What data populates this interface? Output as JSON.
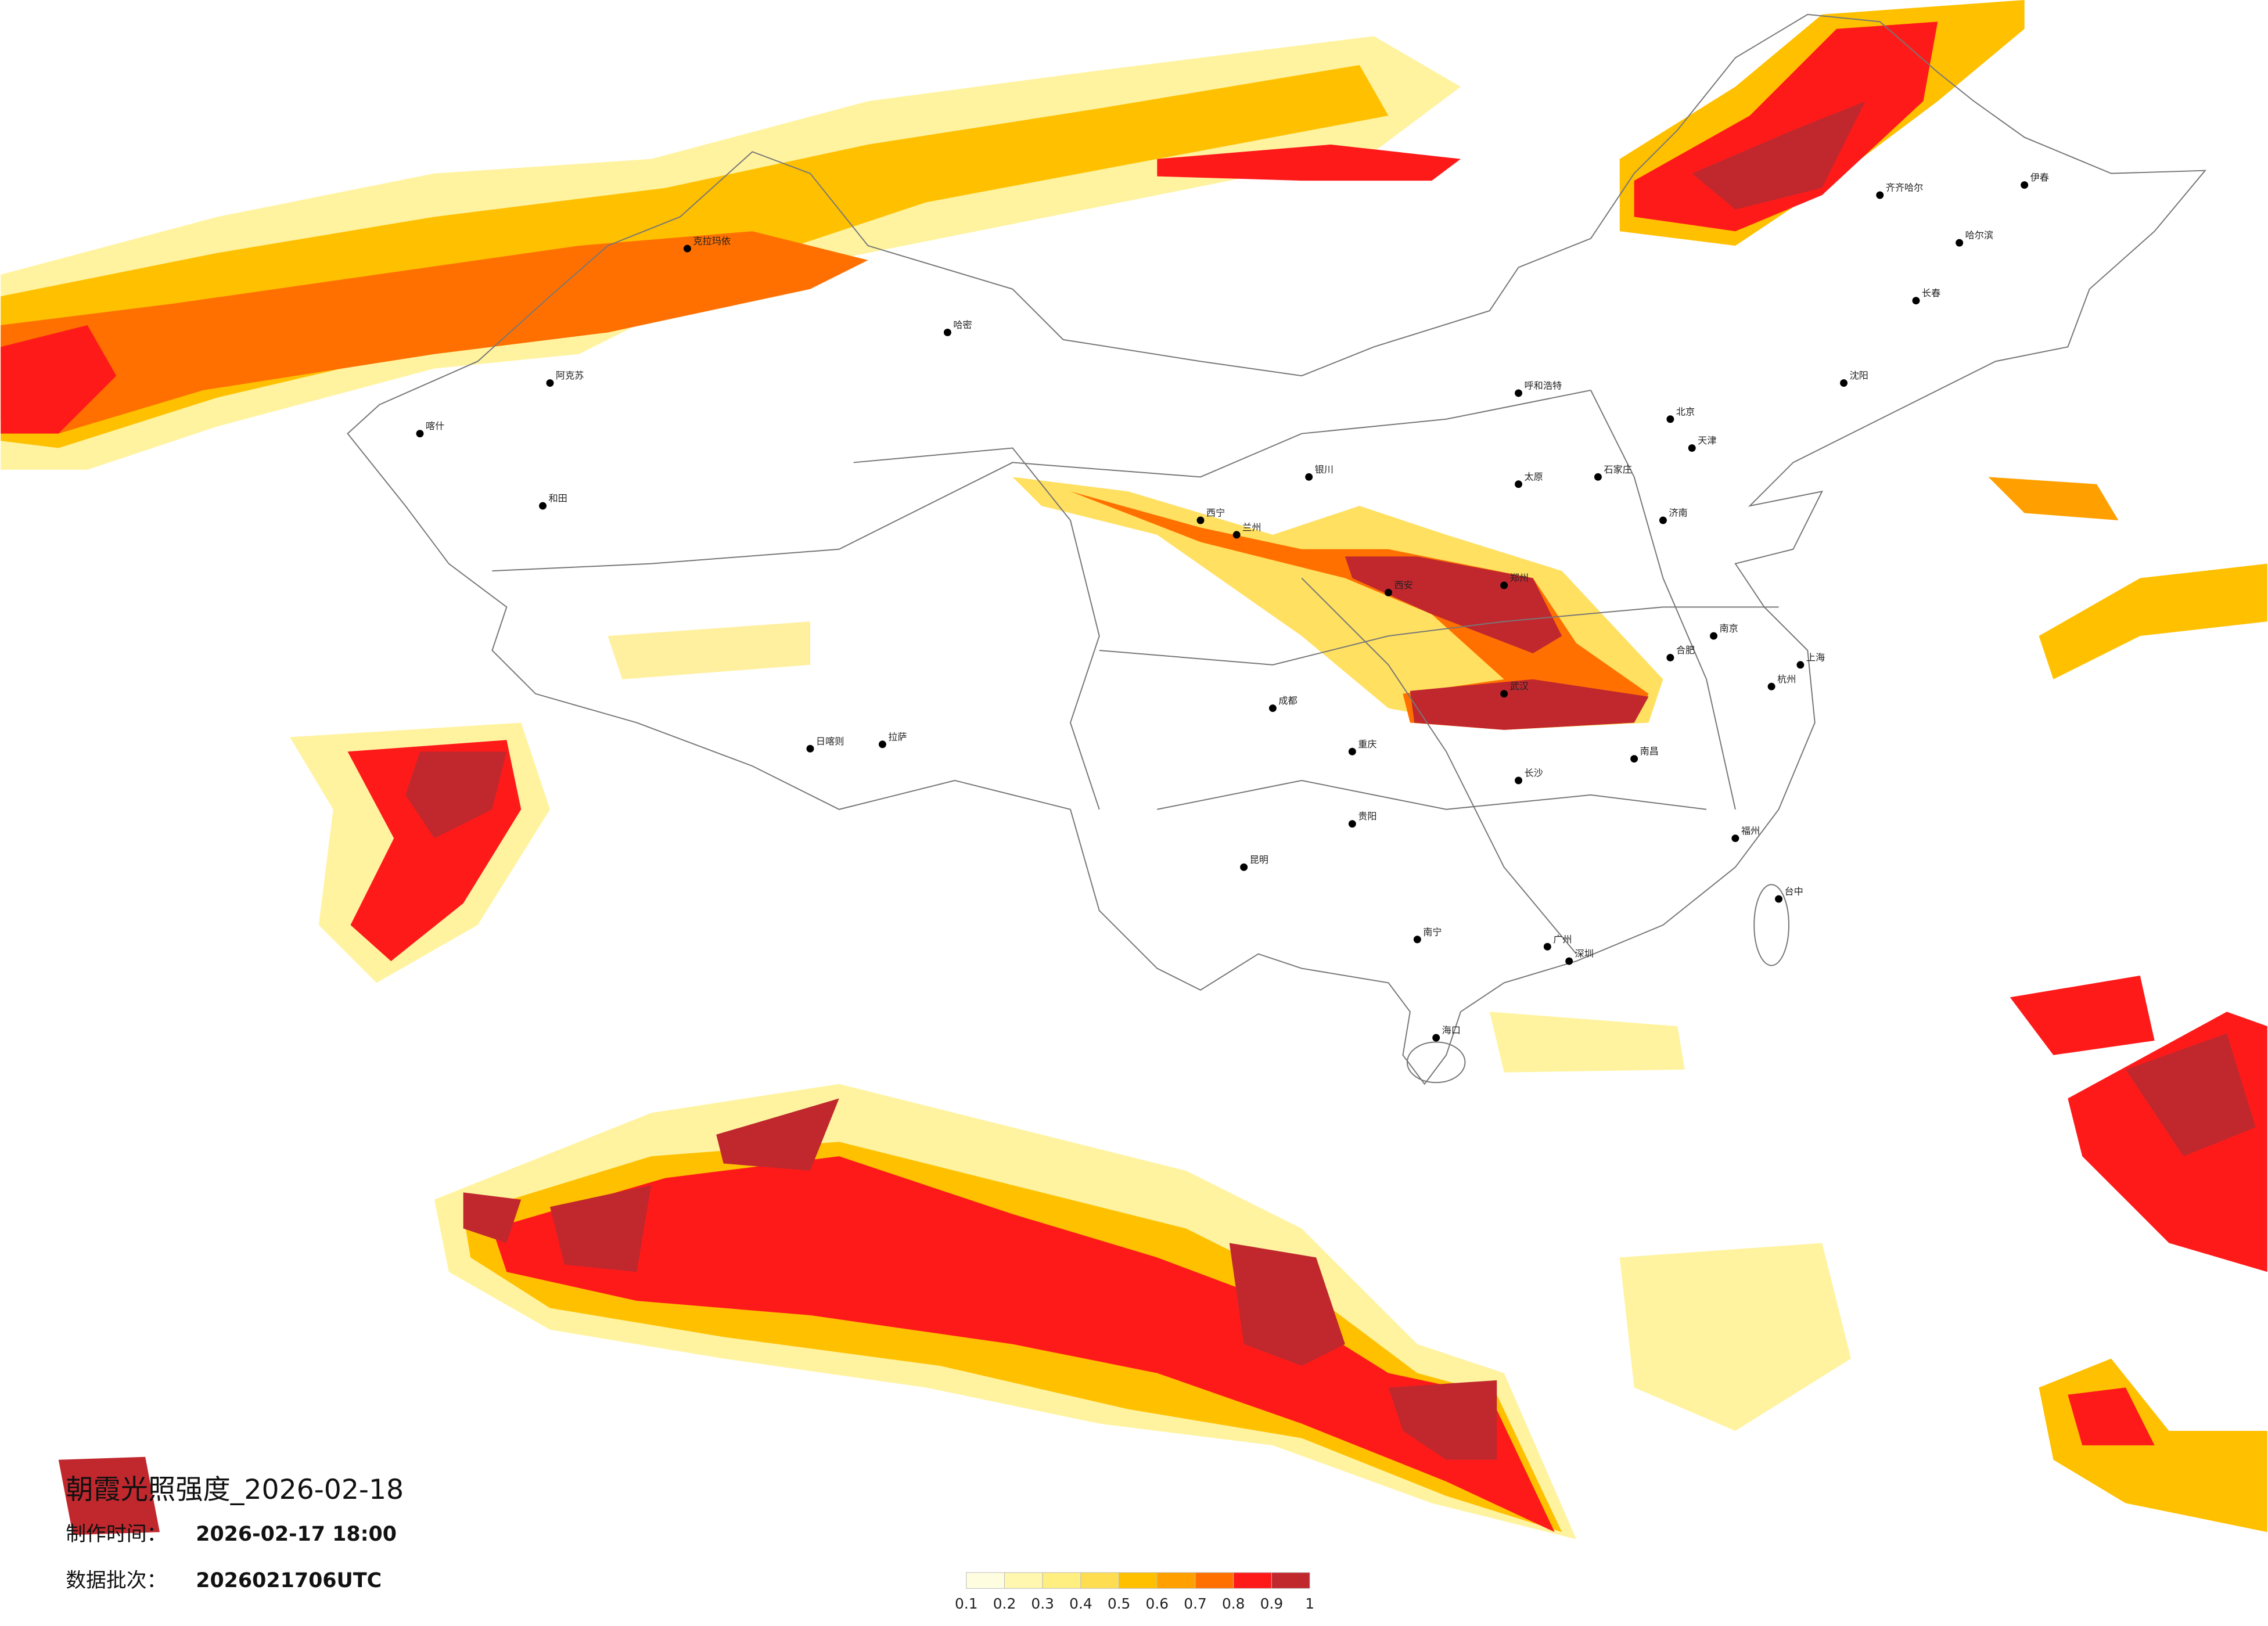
{
  "header": {
    "title": "朝霞光照强度_2026-02-18"
  },
  "production_time": {
    "label": "制作时间：",
    "value": "2026-02-17 18:00"
  },
  "batch": {
    "label": "数据批次：",
    "value": "2026021706UTC"
  },
  "legend": {
    "ticks": [
      0.1,
      0.2,
      0.3,
      0.4,
      0.5,
      0.6,
      0.7,
      0.8,
      0.9,
      1
    ],
    "colors": [
      "#fffde0",
      "#fff6b0",
      "#ffee80",
      "#ffdd50",
      "#ffc000",
      "#ffa000",
      "#ff7000",
      "#ff1a1a",
      "#c0282e"
    ]
  },
  "cities": [
    "北京",
    "天津",
    "上海",
    "广州",
    "深圳",
    "重庆",
    "成都",
    "武汉",
    "西安",
    "郑州",
    "兰州",
    "西宁",
    "哈尔滨",
    "长春",
    "沈阳",
    "呼和浩特",
    "银川",
    "拉萨",
    "昆明",
    "贵阳",
    "南宁",
    "海口",
    "福州",
    "南昌",
    "长沙",
    "杭州",
    "南京",
    "合肥",
    "济南",
    "石家庄",
    "太原",
    "和田",
    "喀什",
    "阿克苏",
    "日喀则",
    "齐齐哈尔",
    "台中",
    "伊春",
    "克拉玛依",
    "哈密"
  ]
}
